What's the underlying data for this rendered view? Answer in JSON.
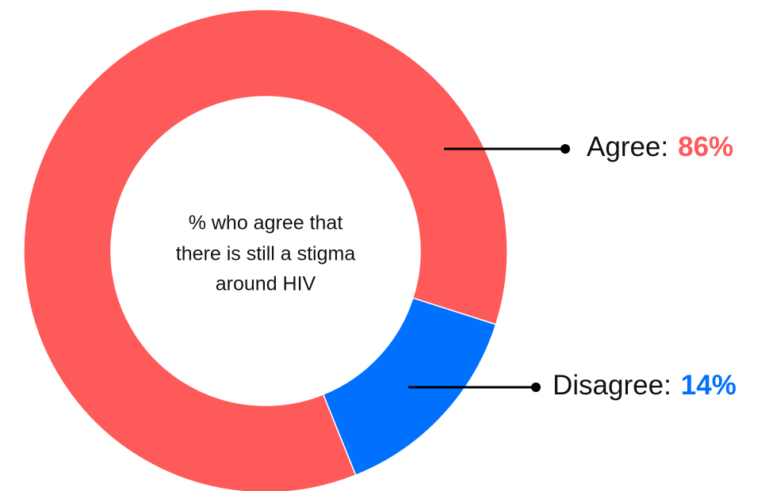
{
  "chart_data": {
    "type": "donut",
    "title": [
      "% who agree that",
      "there is still a stigma",
      "around HIV"
    ],
    "categories": [
      "Agree:",
      "Disagree:"
    ],
    "values": [
      86,
      14
    ],
    "value_labels": [
      "86%",
      "14%"
    ],
    "colors": [
      "#ff5a5a",
      "#0070ff"
    ]
  }
}
